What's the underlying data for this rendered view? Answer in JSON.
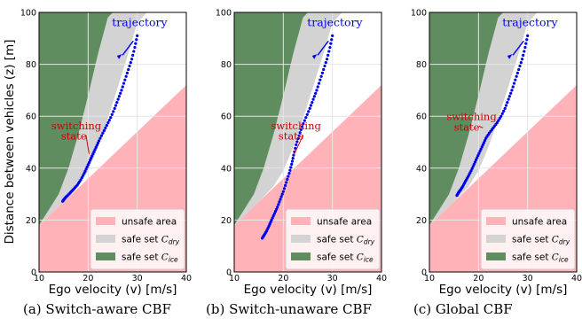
{
  "figure": {
    "ylabel": "Distance between vehicles (z) [m]",
    "xlabel": "Ego velocity (v) [m/s]"
  },
  "legend_labels": {
    "unsafe": "unsafe area",
    "dry": "safe set C_dry",
    "ice": "safe set C_ice"
  },
  "colors": {
    "unsafe": "#ffb3b8",
    "dry": "#d3d3d3",
    "ice": "#5f8d5f",
    "trajectory": "#0000ee",
    "annotation": "#cc0000",
    "grid": "#e6e6e6"
  },
  "chart_data": [
    {
      "type": "scatter",
      "caption": "(a) Switch-aware CBF",
      "xlim": [
        10,
        40
      ],
      "ylim": [
        0,
        100
      ],
      "xticks": [
        10,
        20,
        30,
        40
      ],
      "yticks": [
        0,
        20,
        40,
        60,
        80,
        100
      ],
      "grid": true,
      "legend_position": "lower-right",
      "regions": {
        "unsafe_boundary": {
          "x": [
            10,
            40
          ],
          "y": [
            18,
            72
          ]
        },
        "dry_boundary": {
          "x": [
            10,
            15,
            18,
            20,
            22,
            24,
            26,
            28,
            30,
            32
          ],
          "y": [
            18,
            27,
            33,
            39,
            48,
            59,
            71,
            83,
            96,
            100
          ]
        },
        "ice_boundary": {
          "x": [
            10,
            14,
            16,
            18,
            20,
            22,
            24,
            25
          ],
          "y": [
            18,
            30,
            40,
            53,
            68,
            84,
            98,
            100
          ]
        }
      },
      "series": [
        {
          "name": "trajectory",
          "x": [
            30.0,
            29.5,
            28.9,
            28.2,
            27.5,
            26.8,
            26.1,
            25.4,
            24.6,
            23.8,
            23.0,
            22.2,
            21.6,
            21.0,
            20.4,
            19.8,
            19.2,
            18.5,
            17.8,
            17.1,
            16.5,
            16.0,
            15.5,
            15.1,
            14.8
          ],
          "y": [
            91.0,
            86.5,
            82.0,
            78.0,
            74.0,
            70.0,
            66.5,
            63.0,
            59.5,
            56.5,
            53.5,
            50.5,
            48.0,
            45.5,
            43.0,
            40.5,
            38.0,
            35.5,
            33.5,
            32.0,
            30.8,
            29.8,
            28.9,
            28.0,
            27.2
          ]
        }
      ],
      "annotations": [
        {
          "text": "trajectory",
          "x": 30.5,
          "y": 96.5
        },
        {
          "text": "switching",
          "x": 12.5,
          "y": 55.0
        },
        {
          "text": "state",
          "x": 14.5,
          "y": 51.0
        }
      ]
    },
    {
      "type": "scatter",
      "caption": "(b) Switch-unaware CBF",
      "xlim": [
        10,
        40
      ],
      "ylim": [
        0,
        100
      ],
      "xticks": [
        10,
        20,
        30,
        40
      ],
      "yticks": [
        0,
        20,
        40,
        60,
        80,
        100
      ],
      "grid": true,
      "legend_position": "lower-right",
      "regions": {
        "unsafe_boundary": {
          "x": [
            10,
            40
          ],
          "y": [
            18,
            72
          ]
        },
        "dry_boundary": {
          "x": [
            10,
            15,
            18,
            20,
            22,
            24,
            26,
            28,
            30,
            32
          ],
          "y": [
            18,
            27,
            33,
            39,
            48,
            59,
            71,
            83,
            96,
            100
          ]
        },
        "ice_boundary": {
          "x": [
            10,
            14,
            16,
            18,
            20,
            22,
            24,
            25
          ],
          "y": [
            18,
            30,
            40,
            53,
            68,
            84,
            98,
            100
          ]
        }
      },
      "series": [
        {
          "name": "trajectory",
          "x": [
            30.0,
            29.5,
            28.9,
            28.2,
            27.5,
            26.8,
            26.1,
            25.4,
            24.6,
            23.8,
            23.2,
            22.6,
            22.1,
            21.7,
            21.2,
            20.6,
            20.0,
            19.4,
            18.8,
            18.2,
            17.6,
            17.1,
            16.6,
            16.1,
            15.7
          ],
          "y": [
            91.0,
            86.5,
            82.0,
            78.0,
            74.0,
            70.0,
            66.5,
            63.0,
            59.5,
            56.0,
            52.5,
            49.0,
            45.0,
            41.5,
            38.0,
            34.5,
            31.0,
            28.0,
            25.0,
            22.5,
            20.0,
            17.8,
            15.8,
            14.2,
            13.0
          ]
        }
      ],
      "annotations": [
        {
          "text": "trajectory",
          "x": 30.5,
          "y": 96.5
        },
        {
          "text": "switching",
          "x": 17.5,
          "y": 55.0
        },
        {
          "text": "state",
          "x": 19.0,
          "y": 51.0
        }
      ]
    },
    {
      "type": "scatter",
      "caption": "(c) Global CBF",
      "xlim": [
        10,
        40
      ],
      "ylim": [
        0,
        100
      ],
      "xticks": [
        10,
        20,
        30,
        40
      ],
      "yticks": [
        0,
        20,
        40,
        60,
        80,
        100
      ],
      "grid": true,
      "legend_position": "lower-right",
      "regions": {
        "unsafe_boundary": {
          "x": [
            10,
            40
          ],
          "y": [
            18,
            72
          ]
        },
        "dry_boundary": {
          "x": [
            10,
            15,
            18,
            20,
            22,
            24,
            26,
            28,
            30,
            32
          ],
          "y": [
            18,
            27,
            33,
            39,
            48,
            59,
            71,
            83,
            96,
            100
          ]
        },
        "ice_boundary": {
          "x": [
            10,
            14,
            16,
            18,
            20,
            22,
            24,
            25
          ],
          "y": [
            18,
            30,
            40,
            53,
            68,
            84,
            98,
            100
          ]
        }
      },
      "series": [
        {
          "name": "trajectory",
          "x": [
            30.0,
            29.5,
            28.9,
            28.2,
            27.5,
            26.8,
            26.1,
            25.4,
            24.6,
            23.8,
            23.0,
            22.2,
            21.5,
            20.9,
            20.3,
            19.7,
            19.1,
            18.5,
            17.9,
            17.3,
            16.8,
            16.4,
            16.0,
            15.8,
            15.6
          ],
          "y": [
            91.0,
            86.5,
            82.0,
            78.0,
            74.0,
            70.0,
            66.5,
            63.0,
            60.0,
            57.5,
            55.5,
            53.5,
            51.5,
            49.0,
            46.5,
            44.0,
            41.5,
            39.0,
            36.8,
            34.8,
            33.0,
            31.8,
            30.8,
            30.1,
            29.5
          ]
        }
      ],
      "annotations": [
        {
          "text": "trajectory",
          "x": 30.5,
          "y": 96.5
        },
        {
          "text": "switching",
          "x": 13.5,
          "y": 58.5
        },
        {
          "text": "state",
          "x": 15.0,
          "y": 54.5
        }
      ]
    }
  ]
}
